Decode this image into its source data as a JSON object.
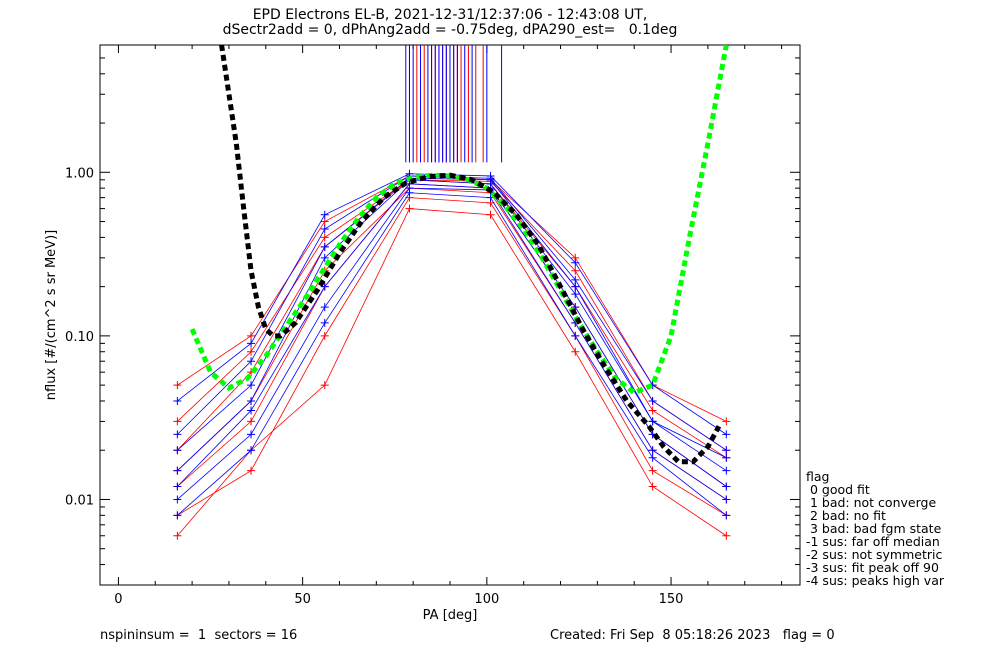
{
  "title_line1": "EPD Electrons EL-B, 2021-12-31/12:37:06 - 12:43:08 UT,",
  "title_line2": "dSectr2add = 0, dPhAng2add = -0.75deg, dPA290_est=   0.1deg",
  "footer_left": "nspininsum =  1  sectors = 16",
  "footer_right": "Created: Fri Sep  8 05:18:26 2023   flag = 0",
  "legend": {
    "title": "flag",
    "items": [
      " 0 good fit",
      " 1 bad: not converge",
      " 2 bad: no fit",
      " 3 bad: bad fgm state",
      "-1 sus: far off median",
      "-2 sus: not symmetric",
      "-3 sus: fit peak off 90",
      "-4 sus: peaks high var"
    ]
  },
  "colors": {
    "red": "#ff0000",
    "blue": "#0000ff",
    "black": "#000000",
    "green": "#00ff00"
  },
  "chart_data": {
    "type": "line",
    "xlabel": "PA [deg]",
    "ylabel": "nflux [#/(cm^2 s sr MeV)]",
    "xlim": [
      -5,
      185
    ],
    "ylim": [
      0.003,
      6
    ],
    "y_scale": "log",
    "x_ticks": [
      0,
      50,
      100,
      150
    ],
    "x_tick_labels": [
      "0",
      "50",
      "100",
      "150"
    ],
    "y_ticks": [
      0.01,
      0.1,
      1.0
    ],
    "y_tick_labels": [
      "0.01",
      "0.10",
      "1.00"
    ],
    "grid": false,
    "legend_position": "right",
    "pa_bins": [
      16,
      36,
      56,
      79,
      101,
      124,
      145,
      165
    ],
    "series": [
      {
        "color": "red",
        "curves": [
          [
            0.012,
            0.03,
            0.2,
            0.85,
            0.8,
            0.15,
            0.025,
            0.012
          ],
          [
            0.02,
            0.06,
            0.35,
            0.9,
            0.85,
            0.2,
            0.035,
            0.018
          ],
          [
            0.008,
            0.015,
            0.1,
            0.7,
            0.65,
            0.1,
            0.015,
            0.008
          ],
          [
            0.05,
            0.1,
            0.5,
            0.95,
            0.9,
            0.3,
            0.05,
            0.03
          ],
          [
            0.015,
            0.04,
            0.25,
            0.8,
            0.75,
            0.12,
            0.02,
            0.01
          ],
          [
            0.006,
            0.02,
            0.05,
            0.6,
            0.55,
            0.08,
            0.012,
            0.006
          ],
          [
            0.03,
            0.08,
            0.4,
            0.9,
            0.88,
            0.25,
            0.04,
            0.02
          ]
        ]
      },
      {
        "color": "blue",
        "curves": [
          [
            0.015,
            0.04,
            0.3,
            0.9,
            0.85,
            0.18,
            0.03,
            0.015
          ],
          [
            0.025,
            0.07,
            0.45,
            0.95,
            0.92,
            0.22,
            0.04,
            0.02
          ],
          [
            0.01,
            0.025,
            0.15,
            0.8,
            0.78,
            0.12,
            0.02,
            0.01
          ],
          [
            0.04,
            0.09,
            0.55,
            0.98,
            0.95,
            0.28,
            0.05,
            0.025
          ],
          [
            0.012,
            0.035,
            0.2,
            0.85,
            0.8,
            0.15,
            0.025,
            0.012
          ],
          [
            0.02,
            0.05,
            0.35,
            0.92,
            0.9,
            0.2,
            0.03,
            0.018
          ],
          [
            0.008,
            0.02,
            0.12,
            0.75,
            0.7,
            0.1,
            0.018,
            0.008
          ]
        ]
      }
    ],
    "fits": [
      {
        "color": "green",
        "x": [
          20,
          25,
          30,
          35,
          40,
          45,
          50,
          55,
          60,
          65,
          70,
          75,
          80,
          85,
          90,
          95,
          100,
          105,
          110,
          115,
          120,
          125,
          130,
          135,
          140,
          145,
          150,
          155,
          160,
          165
        ],
        "y": [
          0.11,
          0.06,
          0.048,
          0.055,
          0.075,
          0.11,
          0.16,
          0.24,
          0.36,
          0.52,
          0.7,
          0.85,
          0.93,
          0.96,
          0.95,
          0.9,
          0.8,
          0.62,
          0.45,
          0.3,
          0.19,
          0.12,
          0.08,
          0.055,
          0.045,
          0.05,
          0.1,
          0.4,
          1.5,
          6
        ]
      },
      {
        "color": "black",
        "x": [
          28,
          30,
          32,
          34,
          36,
          38,
          40,
          42,
          44,
          48,
          54,
          60,
          66,
          72,
          78,
          84,
          90,
          96,
          102,
          108,
          114,
          120,
          126,
          132,
          138,
          144,
          148,
          152,
          156,
          160,
          163
        ],
        "y": [
          6,
          3,
          1.5,
          0.6,
          0.25,
          0.15,
          0.11,
          0.1,
          0.1,
          0.12,
          0.19,
          0.32,
          0.5,
          0.7,
          0.86,
          0.94,
          0.96,
          0.9,
          0.75,
          0.55,
          0.36,
          0.2,
          0.11,
          0.065,
          0.04,
          0.028,
          0.021,
          0.017,
          0.017,
          0.021,
          0.028
        ]
      }
    ],
    "peak_marks": {
      "red_x": [
        79,
        81,
        83,
        85,
        86,
        87,
        88,
        89,
        90,
        91,
        92,
        93,
        95,
        97,
        99
      ],
      "blue_x": [
        78,
        79,
        80,
        82,
        84,
        85,
        86,
        87,
        88,
        89,
        90,
        91,
        92,
        94,
        96,
        100,
        104
      ],
      "y_top": 6,
      "y_bottom": 1.15
    }
  }
}
